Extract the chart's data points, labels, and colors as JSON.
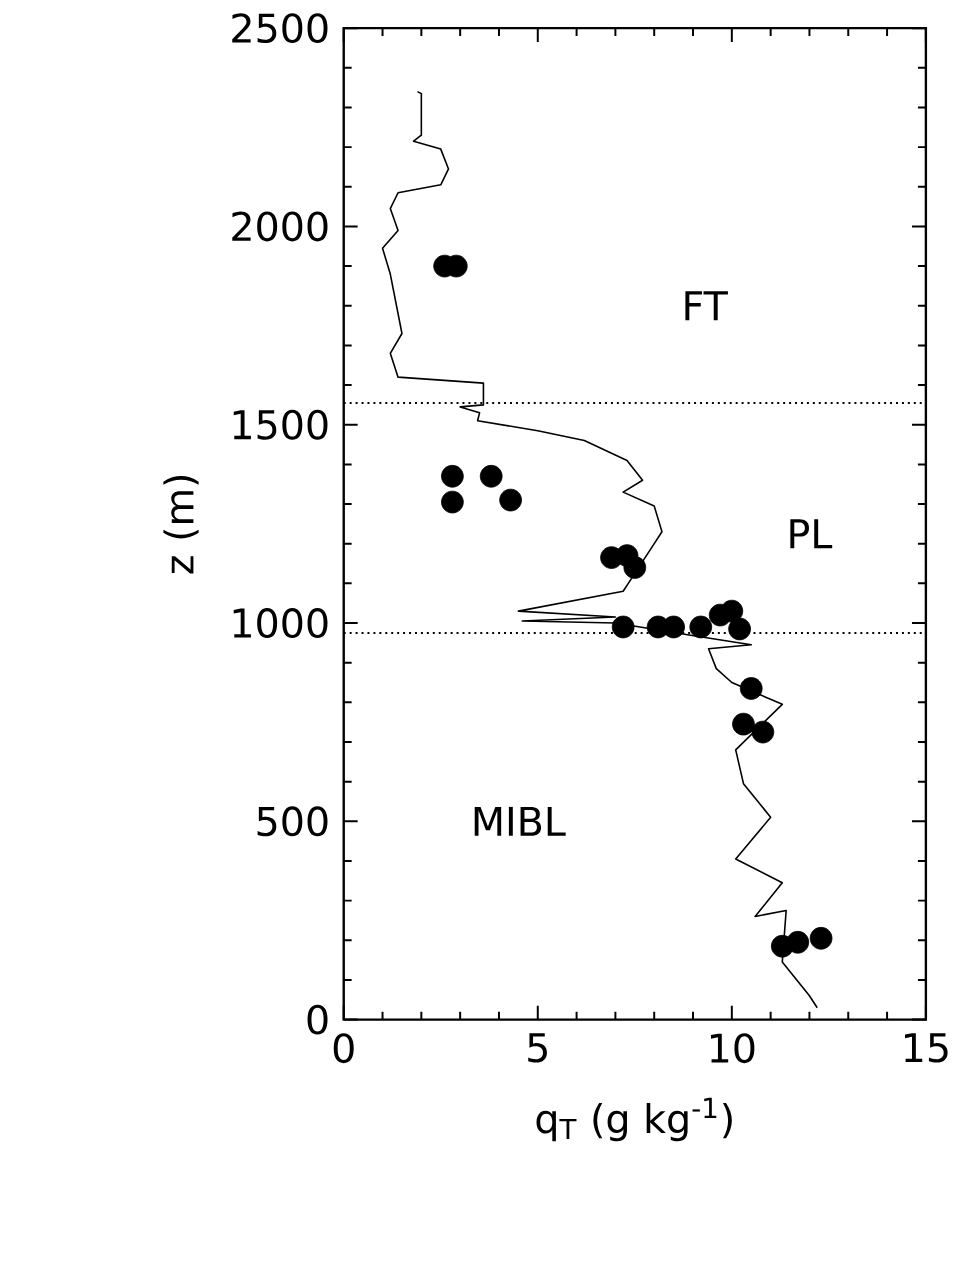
{
  "chart_data": {
    "type": "line",
    "xlabel": "q$_{T}$ (g kg$^{-1}$)",
    "ylabel": "z (m)",
    "xlim": [
      0,
      15
    ],
    "ylim": [
      0,
      2500
    ],
    "xticks": [
      0,
      5,
      10,
      15
    ],
    "yticks": [
      0,
      500,
      1000,
      1500,
      2000,
      2500
    ],
    "grid": false,
    "series": [
      {
        "color": "#000000",
        "marker": "none",
        "line_style": "solid",
        "x": [
          1.9,
          2.0,
          2.0,
          1.8,
          2.5,
          2.7,
          2.5,
          1.4,
          1.2,
          1.4,
          1.0,
          1.2,
          1.5,
          1.2,
          1.4,
          3.6,
          3.6,
          3.0,
          3.5,
          3.45,
          5.0,
          6.2,
          7.3,
          7.7,
          7.2,
          8.0,
          8.2,
          7.9,
          7.4,
          7.2,
          4.5,
          7.0,
          4.6,
          7.0,
          8.9,
          10.5,
          9.4,
          9.6,
          10.0,
          11.3,
          10.1,
          10.3,
          11.0,
          10.1,
          11.3,
          10.6,
          11.4,
          11.3,
          12.0,
          12.2
        ],
        "values": [
          2340,
          2335,
          2230,
          2215,
          2195,
          2145,
          2105,
          2085,
          2045,
          1990,
          1945,
          1880,
          1730,
          1680,
          1620,
          1605,
          1550,
          1545,
          1530,
          1510,
          1485,
          1460,
          1410,
          1360,
          1330,
          1295,
          1230,
          1185,
          1110,
          1080,
          1030,
          1015,
          1005,
          1000,
          970,
          945,
          935,
          885,
          850,
          795,
          680,
          595,
          510,
          405,
          345,
          260,
          275,
          145,
          60,
          30
        ]
      },
      {
        "type": "scatter",
        "color": "#000000",
        "marker": "circle",
        "x": [
          2.6,
          2.9,
          2.8,
          2.8,
          3.8,
          4.3,
          6.9,
          7.3,
          7.5,
          7.2,
          8.1,
          8.5,
          9.2,
          9.7,
          10.0,
          10.2,
          10.5,
          10.3,
          10.8,
          11.3,
          11.7,
          12.3
        ],
        "values": [
          1900,
          1900,
          1370,
          1305,
          1370,
          1310,
          1165,
          1170,
          1140,
          990,
          990,
          990,
          990,
          1020,
          1030,
          985,
          835,
          745,
          725,
          185,
          195,
          205
        ]
      }
    ],
    "ref_lines": [
      {
        "axis": "y",
        "value": 1555,
        "color": "#000000",
        "line_style": "dotted"
      },
      {
        "axis": "y",
        "value": 975,
        "color": "#000000",
        "line_style": "dotted"
      }
    ],
    "annotations": [
      "FT",
      "PL",
      "MIBL"
    ]
  }
}
